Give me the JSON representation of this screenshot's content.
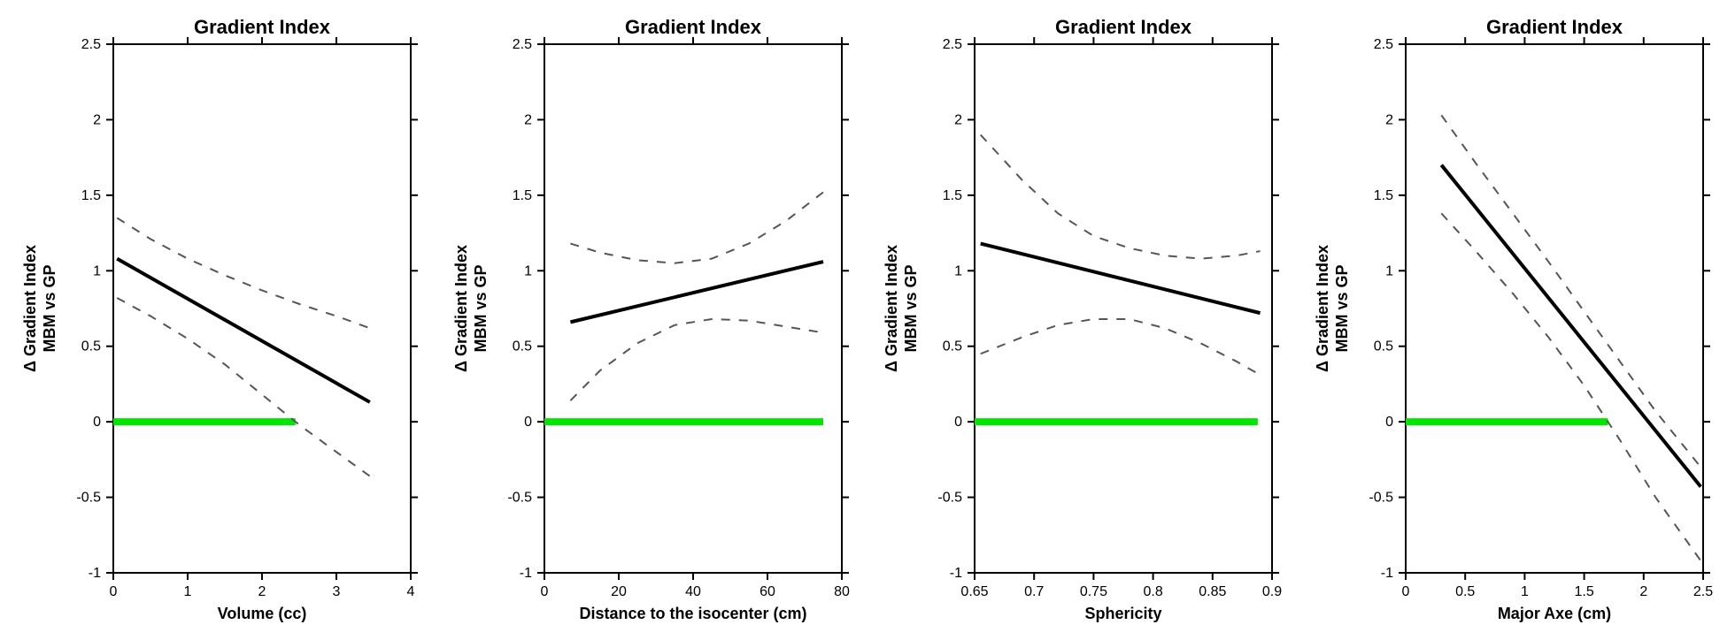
{
  "global": {
    "ylabel_lines": [
      "Δ Gradient Index",
      "MBM vs GP"
    ],
    "ylabel_fontsize": 18,
    "title_fontsize": 22,
    "tick_fontsize": 16,
    "xlabel_fontsize": 18,
    "ylim": [
      -1,
      2.5
    ],
    "yticks": [
      -1,
      -0.5,
      0,
      0.5,
      1,
      1.5,
      2,
      2.5
    ],
    "axis_color": "#000000",
    "tick_color": "#000000",
    "grid_on": false,
    "background_color": "#ffffff",
    "fit_line_color": "#000000",
    "fit_line_width": 4,
    "ci_line_color": "#555555",
    "ci_line_width": 2,
    "ci_dash": "10,10",
    "zero_line_color": "#00e600",
    "zero_line_width": 8,
    "axis_line_width": 2
  },
  "panels": [
    {
      "id": "volume",
      "title": "Gradient Index",
      "xlabel": "Volume (cc)",
      "xlim": [
        0,
        4
      ],
      "xticks": [
        0,
        1,
        2,
        3,
        4
      ],
      "zero_line_x": [
        0,
        2.45
      ],
      "fit": {
        "x": [
          0.05,
          3.45
        ],
        "y": [
          1.08,
          0.13
        ]
      },
      "ci_upper": [
        [
          0.05,
          1.35
        ],
        [
          0.5,
          1.21
        ],
        [
          1.0,
          1.08
        ],
        [
          1.5,
          0.97
        ],
        [
          2.0,
          0.87
        ],
        [
          2.5,
          0.78
        ],
        [
          3.0,
          0.7
        ],
        [
          3.45,
          0.62
        ]
      ],
      "ci_lower": [
        [
          0.05,
          0.82
        ],
        [
          0.5,
          0.7
        ],
        [
          1.0,
          0.55
        ],
        [
          1.5,
          0.38
        ],
        [
          2.0,
          0.18
        ],
        [
          2.5,
          -0.02
        ],
        [
          3.0,
          -0.2
        ],
        [
          3.45,
          -0.36
        ]
      ]
    },
    {
      "id": "distance",
      "title": "Gradient Index",
      "xlabel": "Distance to the isocenter (cm)",
      "xlim": [
        0,
        80
      ],
      "xticks": [
        0,
        20,
        40,
        60,
        80
      ],
      "zero_line_x": [
        0,
        75
      ],
      "fit": {
        "x": [
          7,
          75
        ],
        "y": [
          0.66,
          1.06
        ]
      },
      "ci_upper": [
        [
          7,
          1.18
        ],
        [
          15,
          1.12
        ],
        [
          25,
          1.07
        ],
        [
          35,
          1.05
        ],
        [
          45,
          1.08
        ],
        [
          55,
          1.18
        ],
        [
          65,
          1.33
        ],
        [
          75,
          1.52
        ]
      ],
      "ci_lower": [
        [
          7,
          0.14
        ],
        [
          15,
          0.34
        ],
        [
          25,
          0.52
        ],
        [
          35,
          0.64
        ],
        [
          45,
          0.68
        ],
        [
          55,
          0.67
        ],
        [
          65,
          0.63
        ],
        [
          75,
          0.59
        ]
      ]
    },
    {
      "id": "sphericity",
      "title": "Gradient Index",
      "xlabel": "Sphericity",
      "xlim": [
        0.65,
        0.9
      ],
      "xticks": [
        0.65,
        0.7,
        0.75,
        0.8,
        0.85,
        0.9
      ],
      "zero_line_x": [
        0.65,
        0.888
      ],
      "fit": {
        "x": [
          0.655,
          0.89
        ],
        "y": [
          1.18,
          0.72
        ]
      },
      "ci_upper": [
        [
          0.655,
          1.9
        ],
        [
          0.69,
          1.6
        ],
        [
          0.72,
          1.38
        ],
        [
          0.75,
          1.23
        ],
        [
          0.78,
          1.15
        ],
        [
          0.81,
          1.1
        ],
        [
          0.84,
          1.08
        ],
        [
          0.87,
          1.1
        ],
        [
          0.89,
          1.13
        ]
      ],
      "ci_lower": [
        [
          0.655,
          0.45
        ],
        [
          0.69,
          0.56
        ],
        [
          0.72,
          0.64
        ],
        [
          0.75,
          0.68
        ],
        [
          0.78,
          0.68
        ],
        [
          0.81,
          0.62
        ],
        [
          0.84,
          0.52
        ],
        [
          0.87,
          0.4
        ],
        [
          0.89,
          0.31
        ]
      ]
    },
    {
      "id": "majoraxe",
      "title": "Gradient Index",
      "xlabel": "Major Axe (cm)",
      "xlim": [
        0,
        2.5
      ],
      "xticks": [
        0,
        0.5,
        1,
        1.5,
        2,
        2.5
      ],
      "zero_line_x": [
        0,
        1.7
      ],
      "fit": {
        "x": [
          0.3,
          2.48
        ],
        "y": [
          1.7,
          -0.43
        ]
      },
      "ci_upper": [
        [
          0.3,
          2.03
        ],
        [
          0.6,
          1.7
        ],
        [
          0.9,
          1.38
        ],
        [
          1.2,
          1.06
        ],
        [
          1.5,
          0.73
        ],
        [
          1.8,
          0.4
        ],
        [
          2.1,
          0.07
        ],
        [
          2.48,
          -0.3
        ]
      ],
      "ci_lower": [
        [
          0.3,
          1.38
        ],
        [
          0.6,
          1.12
        ],
        [
          0.9,
          0.85
        ],
        [
          1.2,
          0.56
        ],
        [
          1.5,
          0.24
        ],
        [
          1.8,
          -0.12
        ],
        [
          2.1,
          -0.5
        ],
        [
          2.48,
          -0.92
        ]
      ]
    }
  ]
}
